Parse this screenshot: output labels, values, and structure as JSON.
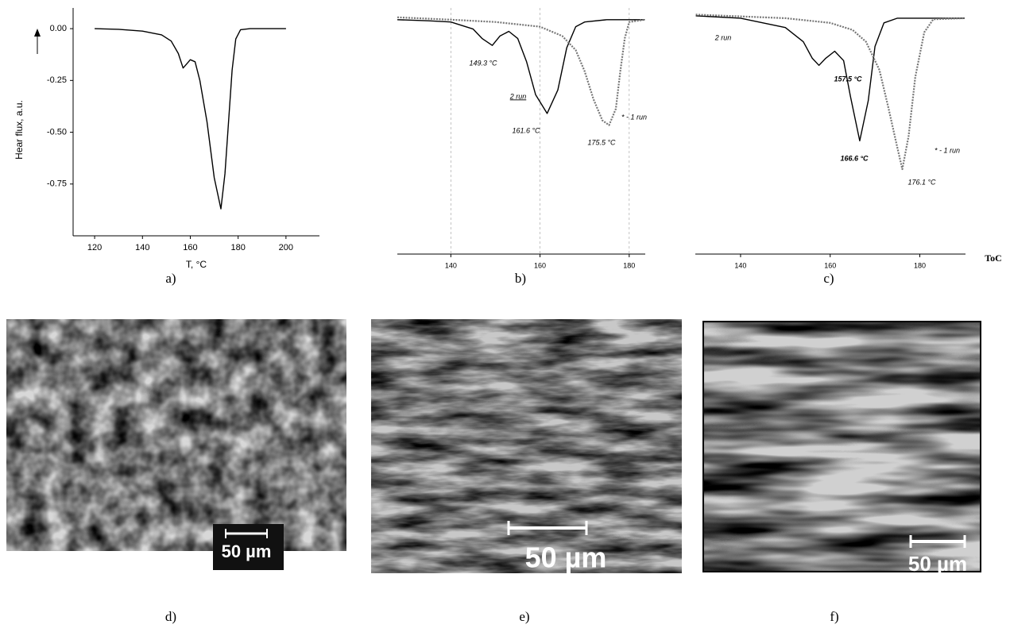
{
  "chart_data": [
    {
      "type": "line",
      "x_label": "T, °C",
      "y_label": "Hear flux, a.u.",
      "xlim": [
        111,
        214
      ],
      "ylim": [
        -1.0,
        0.1
      ],
      "xticks": [
        120,
        140,
        160,
        180,
        200
      ],
      "yticks": [
        {
          "value": 0,
          "label": "0.00"
        },
        {
          "value": -0.25,
          "label": "-0.25"
        },
        {
          "value": -0.5,
          "label": "-0.50"
        },
        {
          "value": -0.75,
          "label": "-0.75"
        }
      ],
      "series": [
        {
          "color": "#000000",
          "x": [
            120,
            130,
            140,
            148,
            152,
            155,
            157,
            158.5,
            160,
            162,
            164,
            167,
            170,
            172.8,
            174.5,
            176,
            177.5,
            179,
            181,
            185,
            200
          ],
          "values": [
            0,
            -0.003,
            -0.012,
            -0.03,
            -0.06,
            -0.12,
            -0.19,
            -0.17,
            -0.15,
            -0.16,
            -0.25,
            -0.45,
            -0.72,
            -0.87,
            -0.7,
            -0.45,
            -0.2,
            -0.05,
            -0.005,
            0,
            0
          ]
        }
      ]
    },
    {
      "type": "line",
      "xlim": [
        128,
        183.6
      ],
      "ylim": [
        -1.0,
        0.05
      ],
      "xticks": [
        140,
        160,
        180
      ],
      "grid": "x",
      "annotations": [
        "149.3 °C",
        "161.6 °C",
        "175.5 °C"
      ],
      "series": [
        {
          "name": "2 run",
          "color": "#000000",
          "x": [
            128,
            135,
            140,
            145,
            147,
            149.3,
            151,
            153,
            155,
            157,
            159,
            161.6,
            164,
            166,
            168,
            170,
            175,
            183.5
          ],
          "values": [
            0,
            -0.005,
            -0.01,
            -0.04,
            -0.08,
            -0.11,
            -0.07,
            -0.05,
            -0.08,
            -0.18,
            -0.32,
            -0.4,
            -0.3,
            -0.12,
            -0.03,
            -0.01,
            0,
            0
          ]
        },
        {
          "name": "* - 1 run",
          "color": "#777777",
          "x": [
            128,
            140,
            150,
            160,
            165,
            168,
            170,
            172,
            174,
            175.5,
            177,
            178,
            179,
            180,
            183.5
          ],
          "values": [
            0.01,
            0,
            -0.01,
            -0.03,
            -0.07,
            -0.13,
            -0.22,
            -0.34,
            -0.43,
            -0.45,
            -0.38,
            -0.22,
            -0.08,
            -0.01,
            0
          ]
        }
      ]
    },
    {
      "type": "line",
      "x_label": "ToC",
      "xlim": [
        129.9,
        190.2
      ],
      "ylim": [
        -1.0,
        0.05
      ],
      "xticks": [
        140,
        160,
        180
      ],
      "annotations": [
        "157.5 °C",
        "166.6 °C",
        "176.1 °C"
      ],
      "series": [
        {
          "name": "2 run",
          "color": "#000000",
          "x": [
            130,
            140,
            150,
            154,
            156,
            157.5,
            159,
            161,
            163,
            164.5,
            166.6,
            168.5,
            170,
            172,
            175,
            190
          ],
          "values": [
            0.01,
            0,
            -0.04,
            -0.1,
            -0.17,
            -0.2,
            -0.17,
            -0.14,
            -0.18,
            -0.33,
            -0.52,
            -0.35,
            -0.12,
            -0.02,
            0,
            0
          ]
        },
        {
          "name": "* - 1 run",
          "color": "#777777",
          "x": [
            130,
            150,
            160,
            165,
            168,
            171,
            173,
            175,
            176.1,
            177.5,
            179,
            181,
            183,
            190
          ],
          "values": [
            0.015,
            0,
            -0.02,
            -0.05,
            -0.1,
            -0.22,
            -0.38,
            -0.55,
            -0.64,
            -0.5,
            -0.25,
            -0.06,
            -0.005,
            0
          ]
        }
      ]
    }
  ],
  "micrographs": [
    {
      "scale_bar": "50 µm"
    },
    {
      "scale_bar": "50 µm"
    },
    {
      "scale_bar": "50 µm"
    }
  ],
  "panel_labels": [
    "a)",
    "b)",
    "c)",
    "d)",
    "e)",
    "f)"
  ]
}
